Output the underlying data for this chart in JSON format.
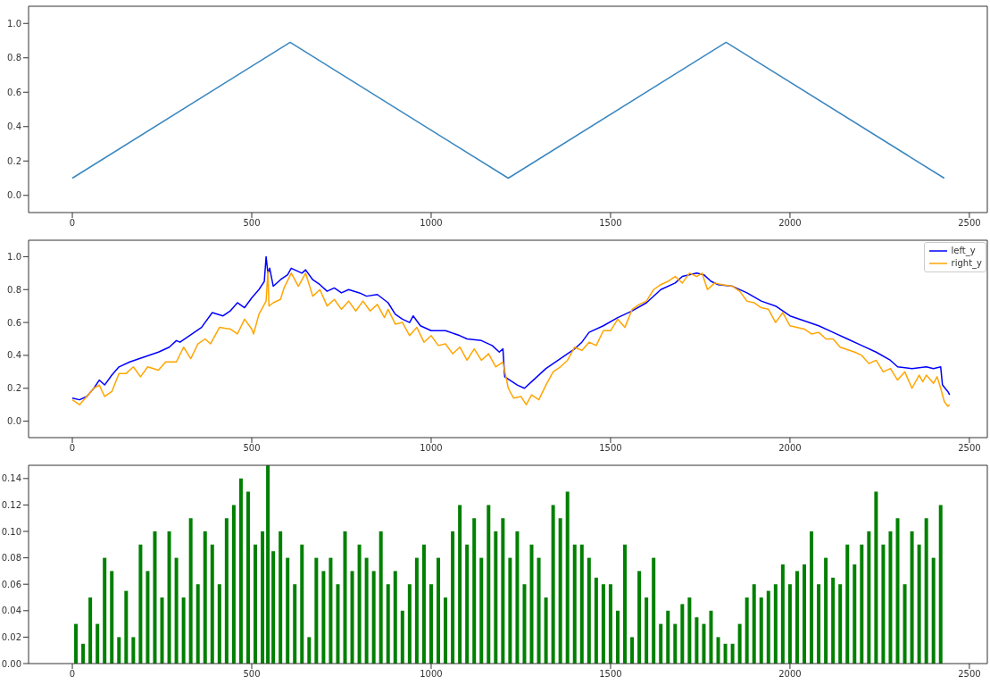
{
  "chart_data": [
    {
      "type": "line",
      "x": [
        0,
        607,
        1215,
        1822,
        2430
      ],
      "values": [
        0.1,
        0.89,
        0.1,
        0.89,
        0.1
      ],
      "color": "#3a87c0",
      "xlim": [
        -122,
        2550
      ],
      "ylim": [
        -0.1,
        1.1
      ],
      "xticks": [
        0,
        500,
        1000,
        1500,
        2000,
        2500
      ],
      "yticks": [
        {
          "value": 0,
          "label": "0.0"
        },
        {
          "value": 0.2,
          "label": "0.2"
        },
        {
          "value": 0.4,
          "label": "0.4"
        },
        {
          "value": 0.6,
          "label": "0.6"
        },
        {
          "value": 0.8,
          "label": "0.8"
        },
        {
          "value": 1,
          "label": "1.0"
        }
      ],
      "grid": false,
      "legend": false
    },
    {
      "type": "line",
      "xlim": [
        -122,
        2550
      ],
      "ylim": [
        -0.1,
        1.1
      ],
      "xticks": [
        0,
        500,
        1000,
        1500,
        2000,
        2500
      ],
      "yticks": [
        {
          "value": 0,
          "label": "0.0"
        },
        {
          "value": 0.2,
          "label": "0.2"
        },
        {
          "value": 0.4,
          "label": "0.4"
        },
        {
          "value": 0.6,
          "label": "0.6"
        },
        {
          "value": 0.8,
          "label": "0.8"
        },
        {
          "value": 1,
          "label": "1.0"
        }
      ],
      "grid": false,
      "legend": "top right",
      "series": [
        {
          "name": "left_y",
          "color": "#0000ff",
          "x": [
            0,
            20,
            40,
            60,
            75,
            90,
            110,
            130,
            160,
            200,
            240,
            270,
            290,
            300,
            340,
            360,
            390,
            420,
            440,
            460,
            480,
            500,
            520,
            535,
            540,
            545,
            550,
            560,
            580,
            600,
            610,
            640,
            650,
            670,
            690,
            710,
            730,
            750,
            770,
            800,
            820,
            850,
            880,
            900,
            920,
            940,
            950,
            970,
            1000,
            1040,
            1080,
            1100,
            1140,
            1170,
            1190,
            1200,
            1205,
            1240,
            1260,
            1280,
            1320,
            1360,
            1400,
            1420,
            1440,
            1480,
            1520,
            1560,
            1600,
            1640,
            1680,
            1700,
            1740,
            1760,
            1780,
            1800,
            1840,
            1880,
            1920,
            1960,
            2000,
            2040,
            2080,
            2120,
            2160,
            2200,
            2240,
            2280,
            2300,
            2340,
            2380,
            2400,
            2420,
            2425,
            2440,
            2445
          ],
          "values": [
            0.14,
            0.13,
            0.15,
            0.2,
            0.25,
            0.22,
            0.28,
            0.33,
            0.36,
            0.39,
            0.42,
            0.45,
            0.49,
            0.48,
            0.54,
            0.57,
            0.66,
            0.64,
            0.67,
            0.72,
            0.69,
            0.75,
            0.8,
            0.85,
            1.0,
            0.9,
            0.93,
            0.82,
            0.86,
            0.89,
            0.93,
            0.9,
            0.92,
            0.86,
            0.83,
            0.79,
            0.81,
            0.78,
            0.8,
            0.78,
            0.76,
            0.77,
            0.72,
            0.65,
            0.62,
            0.6,
            0.64,
            0.58,
            0.55,
            0.55,
            0.52,
            0.5,
            0.49,
            0.46,
            0.42,
            0.44,
            0.27,
            0.22,
            0.2,
            0.24,
            0.32,
            0.38,
            0.44,
            0.48,
            0.54,
            0.58,
            0.63,
            0.67,
            0.72,
            0.8,
            0.84,
            0.88,
            0.9,
            0.89,
            0.85,
            0.83,
            0.82,
            0.78,
            0.73,
            0.7,
            0.64,
            0.61,
            0.58,
            0.54,
            0.5,
            0.46,
            0.42,
            0.37,
            0.33,
            0.32,
            0.33,
            0.32,
            0.33,
            0.22,
            0.18,
            0.16
          ]
        },
        {
          "name": "right_y",
          "color": "#ffa500",
          "x": [
            0,
            20,
            40,
            60,
            75,
            90,
            110,
            130,
            150,
            170,
            190,
            210,
            240,
            260,
            290,
            310,
            330,
            350,
            370,
            385,
            410,
            440,
            460,
            480,
            500,
            505,
            520,
            540,
            545,
            548,
            560,
            580,
            590,
            610,
            630,
            650,
            670,
            690,
            710,
            730,
            750,
            770,
            790,
            810,
            830,
            850,
            870,
            880,
            900,
            920,
            940,
            960,
            980,
            1000,
            1020,
            1040,
            1060,
            1080,
            1100,
            1120,
            1140,
            1160,
            1180,
            1200,
            1215,
            1230,
            1250,
            1265,
            1280,
            1300,
            1320,
            1340,
            1360,
            1380,
            1400,
            1420,
            1440,
            1460,
            1480,
            1500,
            1520,
            1540,
            1560,
            1580,
            1600,
            1620,
            1640,
            1660,
            1680,
            1700,
            1720,
            1740,
            1755,
            1770,
            1790,
            1810,
            1840,
            1860,
            1880,
            1900,
            1920,
            1940,
            1960,
            1980,
            2000,
            2040,
            2060,
            2080,
            2100,
            2120,
            2140,
            2180,
            2200,
            2220,
            2240,
            2260,
            2280,
            2300,
            2320,
            2340,
            2360,
            2370,
            2380,
            2400,
            2410,
            2420,
            2430,
            2440,
            2445
          ],
          "values": [
            0.13,
            0.1,
            0.15,
            0.2,
            0.22,
            0.15,
            0.18,
            0.29,
            0.29,
            0.33,
            0.27,
            0.33,
            0.31,
            0.36,
            0.36,
            0.45,
            0.38,
            0.47,
            0.5,
            0.47,
            0.57,
            0.56,
            0.53,
            0.62,
            0.56,
            0.53,
            0.65,
            0.73,
            0.91,
            0.7,
            0.72,
            0.74,
            0.81,
            0.9,
            0.82,
            0.9,
            0.76,
            0.8,
            0.7,
            0.74,
            0.68,
            0.73,
            0.67,
            0.73,
            0.67,
            0.71,
            0.63,
            0.68,
            0.59,
            0.6,
            0.52,
            0.57,
            0.48,
            0.52,
            0.46,
            0.47,
            0.41,
            0.45,
            0.37,
            0.44,
            0.37,
            0.41,
            0.33,
            0.36,
            0.2,
            0.14,
            0.15,
            0.1,
            0.16,
            0.13,
            0.22,
            0.3,
            0.33,
            0.37,
            0.45,
            0.43,
            0.48,
            0.46,
            0.55,
            0.55,
            0.62,
            0.57,
            0.68,
            0.71,
            0.73,
            0.8,
            0.83,
            0.85,
            0.88,
            0.84,
            0.9,
            0.88,
            0.9,
            0.8,
            0.84,
            0.83,
            0.82,
            0.79,
            0.73,
            0.72,
            0.69,
            0.68,
            0.6,
            0.66,
            0.58,
            0.56,
            0.53,
            0.54,
            0.5,
            0.5,
            0.45,
            0.42,
            0.4,
            0.35,
            0.37,
            0.3,
            0.32,
            0.25,
            0.3,
            0.2,
            0.28,
            0.24,
            0.28,
            0.23,
            0.27,
            0.2,
            0.12,
            0.09,
            0.1
          ]
        }
      ]
    },
    {
      "type": "bar",
      "color": "#008000",
      "xlim": [
        -122,
        2550
      ],
      "ylim": [
        0,
        0.15
      ],
      "xticks": [
        0,
        500,
        1000,
        1500,
        2000,
        2500
      ],
      "yticks": [
        {
          "value": 0,
          "label": "0.00"
        },
        {
          "value": 0.02,
          "label": "0.02"
        },
        {
          "value": 0.04,
          "label": "0.04"
        },
        {
          "value": 0.06,
          "label": "0.06"
        },
        {
          "value": 0.08,
          "label": "0.08"
        },
        {
          "value": 0.1,
          "label": "0.10"
        },
        {
          "value": 0.12,
          "label": "0.12"
        },
        {
          "value": 0.14,
          "label": "0.14"
        }
      ],
      "grid": false,
      "legend": false,
      "x": [
        10,
        30,
        50,
        70,
        90,
        110,
        130,
        150,
        170,
        190,
        210,
        230,
        250,
        270,
        290,
        310,
        330,
        350,
        370,
        390,
        410,
        430,
        450,
        470,
        490,
        510,
        530,
        545,
        560,
        580,
        600,
        620,
        640,
        660,
        680,
        700,
        720,
        740,
        760,
        780,
        800,
        820,
        840,
        860,
        880,
        900,
        920,
        940,
        960,
        980,
        1000,
        1020,
        1040,
        1060,
        1080,
        1100,
        1120,
        1140,
        1160,
        1180,
        1200,
        1220,
        1240,
        1260,
        1280,
        1300,
        1320,
        1340,
        1360,
        1380,
        1400,
        1420,
        1440,
        1460,
        1480,
        1500,
        1520,
        1540,
        1560,
        1580,
        1600,
        1620,
        1640,
        1660,
        1680,
        1700,
        1720,
        1740,
        1760,
        1780,
        1800,
        1820,
        1840,
        1860,
        1880,
        1900,
        1920,
        1940,
        1960,
        1980,
        2000,
        2020,
        2040,
        2060,
        2080,
        2100,
        2120,
        2140,
        2160,
        2180,
        2200,
        2220,
        2240,
        2260,
        2280,
        2300,
        2320,
        2340,
        2360,
        2380,
        2400,
        2420
      ],
      "values": [
        0.03,
        0.015,
        0.05,
        0.03,
        0.08,
        0.07,
        0.02,
        0.055,
        0.02,
        0.09,
        0.07,
        0.1,
        0.05,
        0.1,
        0.08,
        0.05,
        0.11,
        0.06,
        0.1,
        0.09,
        0.06,
        0.11,
        0.12,
        0.14,
        0.13,
        0.09,
        0.1,
        0.15,
        0.085,
        0.1,
        0.08,
        0.06,
        0.09,
        0.02,
        0.08,
        0.07,
        0.08,
        0.06,
        0.1,
        0.07,
        0.09,
        0.08,
        0.07,
        0.1,
        0.06,
        0.07,
        0.04,
        0.06,
        0.08,
        0.09,
        0.06,
        0.08,
        0.05,
        0.1,
        0.12,
        0.09,
        0.11,
        0.08,
        0.12,
        0.1,
        0.11,
        0.08,
        0.1,
        0.06,
        0.09,
        0.08,
        0.05,
        0.12,
        0.11,
        0.13,
        0.09,
        0.09,
        0.08,
        0.065,
        0.06,
        0.06,
        0.04,
        0.09,
        0.02,
        0.07,
        0.05,
        0.08,
        0.03,
        0.04,
        0.03,
        0.045,
        0.05,
        0.035,
        0.03,
        0.04,
        0.02,
        0.015,
        0.015,
        0.03,
        0.05,
        0.06,
        0.05,
        0.055,
        0.06,
        0.075,
        0.06,
        0.07,
        0.075,
        0.1,
        0.06,
        0.08,
        0.065,
        0.06,
        0.09,
        0.075,
        0.09,
        0.1,
        0.13,
        0.09,
        0.1,
        0.11,
        0.06,
        0.1,
        0.09,
        0.11,
        0.08,
        0.12
      ]
    }
  ]
}
